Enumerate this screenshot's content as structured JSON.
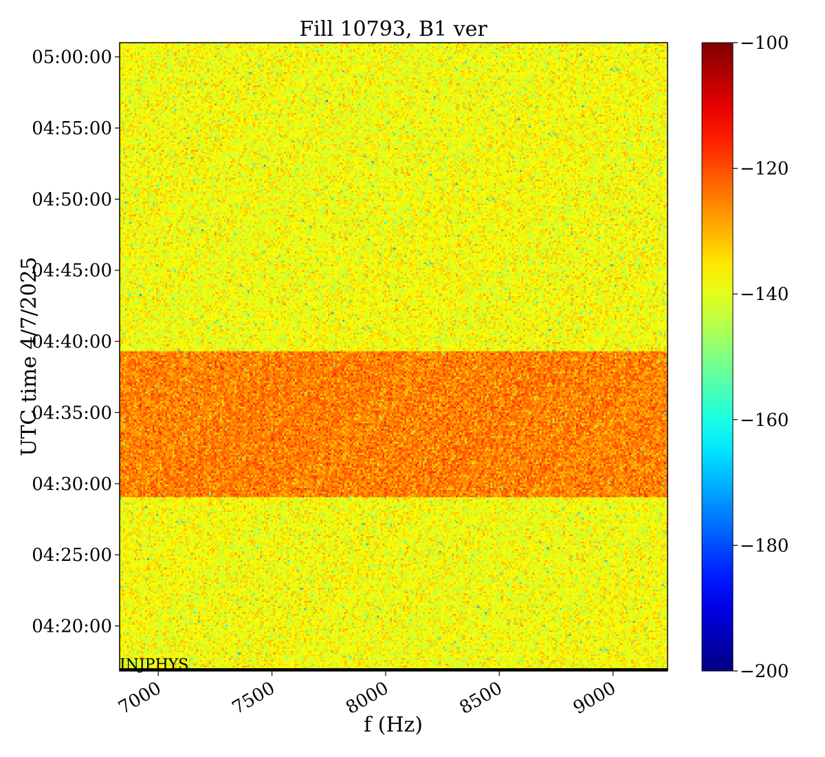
{
  "chart_data": {
    "type": "heatmap",
    "title": "Fill 10793, B1 ver",
    "xlabel": "f (Hz)",
    "ylabel": "UTC time 4/7/2025",
    "xlim": [
      6830,
      9240
    ],
    "ylim": [
      "04:16:50",
      "05:01:00"
    ],
    "x_ticks": [
      7000,
      7500,
      8000,
      8500,
      9000
    ],
    "x_tick_labels": [
      "7000",
      "7500",
      "8000",
      "8500",
      "9000"
    ],
    "y_ticks": [
      "04:20:00",
      "04:25:00",
      "04:30:00",
      "04:35:00",
      "04:40:00",
      "04:45:00",
      "04:50:00",
      "04:55:00",
      "05:00:00"
    ],
    "y_tick_labels": [
      "04:20:00",
      "04:25:00",
      "04:30:00",
      "04:35:00",
      "04:40:00",
      "04:45:00",
      "04:50:00",
      "04:55:00",
      "05:00:00"
    ],
    "colorbar": {
      "colormap": "jet",
      "range": [
        -200,
        -100
      ],
      "ticks": [
        -100,
        -120,
        -140,
        -160,
        -180,
        -200
      ],
      "tick_labels": [
        "−100",
        "−120",
        "−140",
        "−160",
        "−180",
        "−200"
      ]
    },
    "regions": [
      {
        "from": "04:16:50",
        "to": "04:29:00",
        "typical_level": -138
      },
      {
        "from": "04:29:00",
        "to": "04:39:20",
        "typical_level": -125
      },
      {
        "from": "04:39:20",
        "to": "05:01:00",
        "typical_level": -138
      }
    ],
    "annotation": "INJPHYS"
  }
}
